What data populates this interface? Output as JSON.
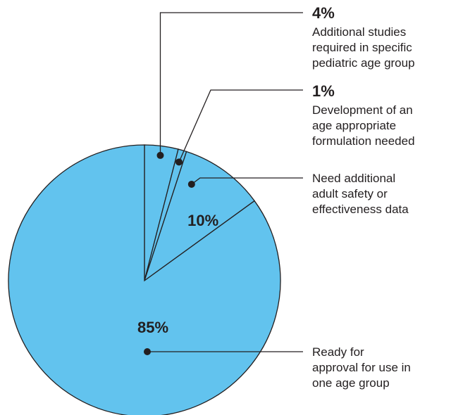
{
  "chart_data": {
    "type": "pie",
    "slices": [
      {
        "value": 4,
        "value_label": "4%",
        "lines": [
          "Additional studies",
          "required in specific",
          "pediatric age group"
        ]
      },
      {
        "value": 1,
        "value_label": "1%",
        "lines": [
          "Development of an",
          "age appropriate",
          "formulation needed"
        ]
      },
      {
        "value": 10,
        "value_label": "10%",
        "lines": [
          "Need additional",
          "adult safety or",
          "effectiveness data"
        ]
      },
      {
        "value": 85,
        "value_label": "85%",
        "lines": [
          "Ready for",
          "approval for use in",
          "one age group"
        ]
      }
    ],
    "colors": {
      "slice_fill": "#62c3ee",
      "slice_stroke": "#231f20",
      "text": "#231f20"
    }
  }
}
